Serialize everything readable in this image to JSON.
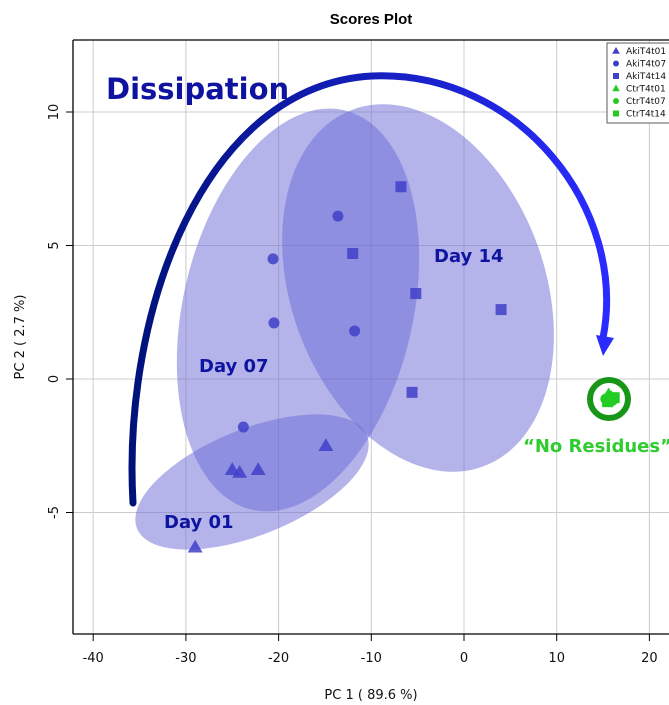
{
  "chart_data": {
    "type": "scatter",
    "title": "Scores Plot",
    "xlabel": "PC 1 ( 89.6 %)",
    "ylabel": "PC 2 ( 2.7 %)",
    "xlim": [
      -42,
      22
    ],
    "ylim": [
      -9.6,
      12.8
    ],
    "x_ticks": [
      -40,
      -30,
      -20,
      -10,
      0,
      10,
      20
    ],
    "y_ticks": [
      -5,
      0,
      5,
      10
    ],
    "grid": true,
    "legend_position": "top-right",
    "series": [
      {
        "name": "AkiT4t01",
        "marker": "triangle",
        "color": "#4040c8",
        "points": [
          [
            -29,
            -6.3
          ],
          [
            -25,
            -3.4
          ],
          [
            -24.2,
            -3.5
          ],
          [
            -22.2,
            -3.4
          ],
          [
            -14.9,
            -2.5
          ]
        ]
      },
      {
        "name": "AkiT4t07",
        "marker": "circle",
        "color": "#4040c8",
        "points": [
          [
            -13.6,
            6.1
          ],
          [
            -20.6,
            4.5
          ],
          [
            -20.5,
            2.1
          ],
          [
            -11.8,
            1.8
          ],
          [
            -23.8,
            -1.8
          ]
        ]
      },
      {
        "name": "AkiT4t14",
        "marker": "square",
        "color": "#4040c8",
        "points": [
          [
            -6.8,
            7.2
          ],
          [
            -12,
            4.7
          ],
          [
            -5.2,
            3.2
          ],
          [
            4,
            2.6
          ],
          [
            -5.6,
            -0.5
          ]
        ]
      },
      {
        "name": "CtrT4t01",
        "marker": "triangle",
        "color": "#22cc22",
        "points": [
          [
            15.6,
            -0.6
          ],
          [
            15.9,
            -0.7
          ]
        ]
      },
      {
        "name": "CtrT4t07",
        "marker": "circle",
        "color": "#22cc22",
        "points": [
          [
            15.3,
            -0.75
          ],
          [
            16.0,
            -0.8
          ]
        ]
      },
      {
        "name": "CtrT4t14",
        "marker": "square",
        "color": "#22cc22",
        "points": [
          [
            15.5,
            -0.85
          ],
          [
            16.2,
            -0.7
          ]
        ]
      }
    ],
    "ellipses": [
      {
        "label": "Day 01",
        "cx": -21.5,
        "cy": -3.4,
        "rx": 26,
        "ry": 2.2,
        "angle": 22
      },
      {
        "label": "Day 07",
        "cx": -19,
        "cy": 2.4,
        "rx": 22,
        "ry": 7.8,
        "angle": 10
      },
      {
        "label": "Day 14",
        "cx": -9,
        "cy": 3.9,
        "rx": 16,
        "ry": 10,
        "angle": -22
      }
    ],
    "annotations": {
      "dissipation": "Dissipation",
      "day01": "Day 01",
      "day07": "Day 07",
      "day14": "Day 14",
      "no_residues": "“No Residues”"
    },
    "colors": {
      "annotation_blue": "#0f14a0",
      "arrow_start": "#00127a",
      "arrow_end": "#2a2cff",
      "ellipse_fill": "#6a6ad8",
      "no_residues_green": "#2fcc2f",
      "ring_green": "#179617",
      "grid": "#cccccc"
    }
  }
}
